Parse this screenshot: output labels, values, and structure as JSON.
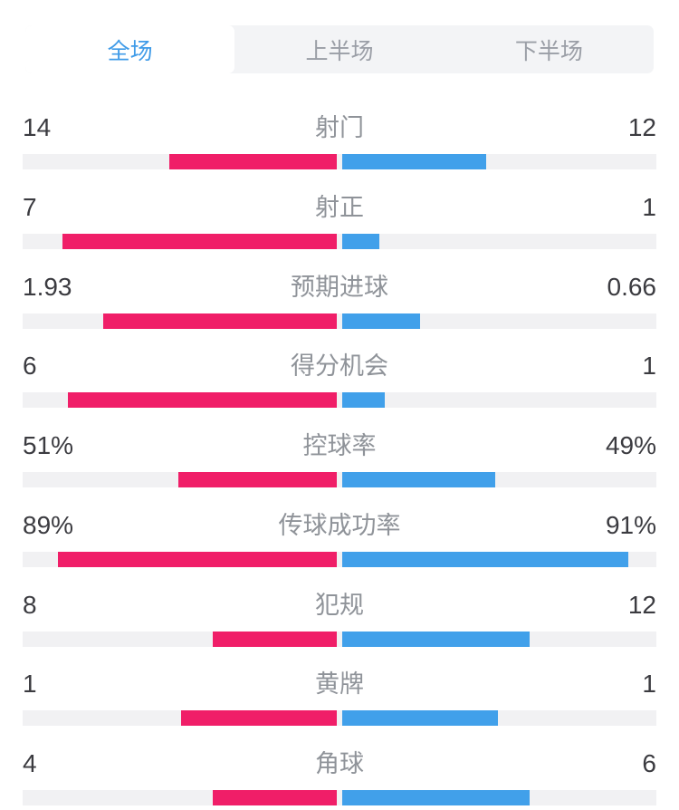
{
  "tabs": {
    "items": [
      {
        "id": "full-match",
        "label": "全场",
        "active": true
      },
      {
        "id": "first-half",
        "label": "上半场",
        "active": false
      },
      {
        "id": "second-half",
        "label": "下半场",
        "active": false
      }
    ]
  },
  "stats": [
    {
      "label": "射门",
      "home": "14",
      "away": "12"
    },
    {
      "label": "射正",
      "home": "7",
      "away": "1"
    },
    {
      "label": "预期进球",
      "home": "1.93",
      "away": "0.66"
    },
    {
      "label": "得分机会",
      "home": "6",
      "away": "1"
    },
    {
      "label": "控球率",
      "home": "51%",
      "away": "49%"
    },
    {
      "label": "传球成功率",
      "home": "89%",
      "away": "91%"
    },
    {
      "label": "犯规",
      "home": "8",
      "away": "12"
    },
    {
      "label": "黄牌",
      "home": "1",
      "away": "1"
    },
    {
      "label": "角球",
      "home": "4",
      "away": "6"
    }
  ],
  "chart_data": {
    "type": "bar",
    "orientation": "horizontal-paired",
    "categories": [
      "射门",
      "射正",
      "预期进球",
      "得分机会",
      "控球率",
      "传球成功率",
      "犯规",
      "黄牌",
      "角球"
    ],
    "series": [
      {
        "name": "home",
        "values": [
          14,
          7,
          1.93,
          6,
          "51%",
          "89%",
          8,
          1,
          4
        ]
      },
      {
        "name": "away",
        "values": [
          12,
          1,
          0.66,
          1,
          "49%",
          "91%",
          12,
          1,
          6
        ]
      }
    ],
    "legend_position": "none",
    "grid": false
  },
  "colors": {
    "home_bar": "#f01e68",
    "away_bar": "#41a0ea",
    "track": "#f1f1f3",
    "tab_bg": "#f3f4f6",
    "active_tab_text": "#3f9be8",
    "inactive_tab_text": "#9a9ea6",
    "value_text": "#3b3b40",
    "label_text": "#8f9399"
  }
}
